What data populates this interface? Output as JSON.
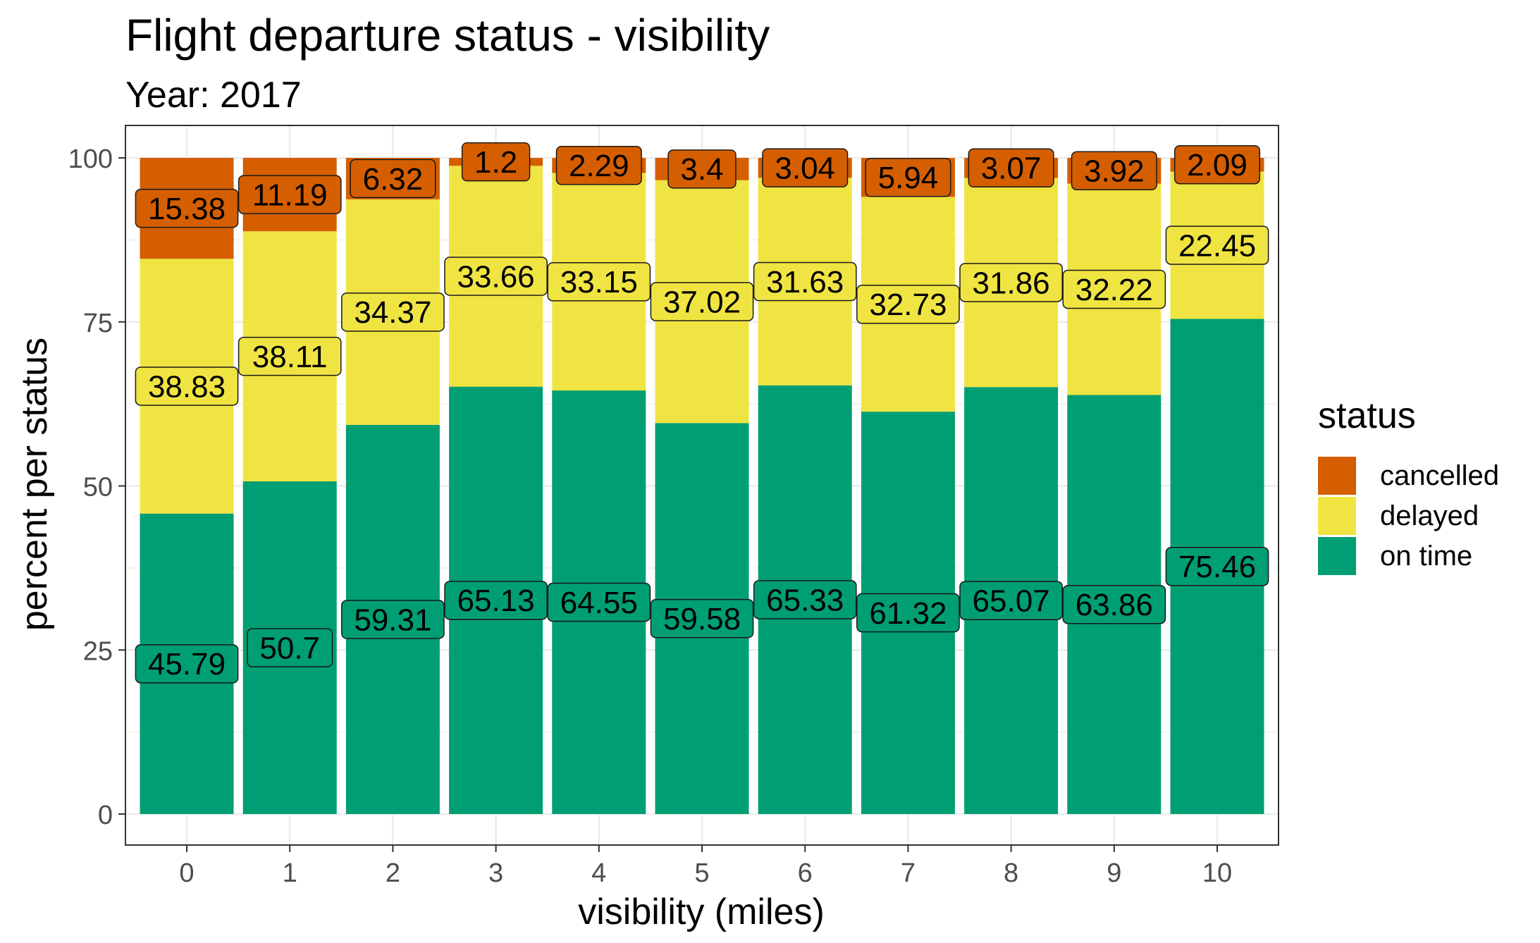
{
  "chart_data": {
    "type": "bar",
    "stacked": true,
    "title": "Flight departure status - visibility",
    "subtitle": "Year: 2017",
    "xlabel": "visibility (miles)",
    "ylabel": "percent per status",
    "categories": [
      "0",
      "1",
      "2",
      "3",
      "4",
      "5",
      "6",
      "7",
      "8",
      "9",
      "10"
    ],
    "ylim": [
      0,
      100
    ],
    "yticks": [
      0,
      25,
      50,
      75,
      100
    ],
    "grid": true,
    "legend": {
      "title": "status",
      "position": "right"
    },
    "series": [
      {
        "name": "on time",
        "color": "#009E73",
        "values": [
          45.79,
          50.7,
          59.31,
          65.13,
          64.55,
          59.58,
          65.33,
          61.32,
          65.07,
          63.86,
          75.46
        ]
      },
      {
        "name": "delayed",
        "color": "#F0E442",
        "values": [
          38.83,
          38.11,
          34.37,
          33.66,
          33.15,
          37.02,
          31.63,
          32.73,
          31.86,
          32.22,
          22.45
        ]
      },
      {
        "name": "cancelled",
        "color": "#D55E00",
        "values": [
          15.38,
          11.19,
          6.32,
          1.2,
          2.29,
          3.4,
          3.04,
          5.94,
          3.07,
          3.92,
          2.09
        ]
      }
    ],
    "legend_order": [
      "cancelled",
      "delayed",
      "on time"
    ]
  }
}
